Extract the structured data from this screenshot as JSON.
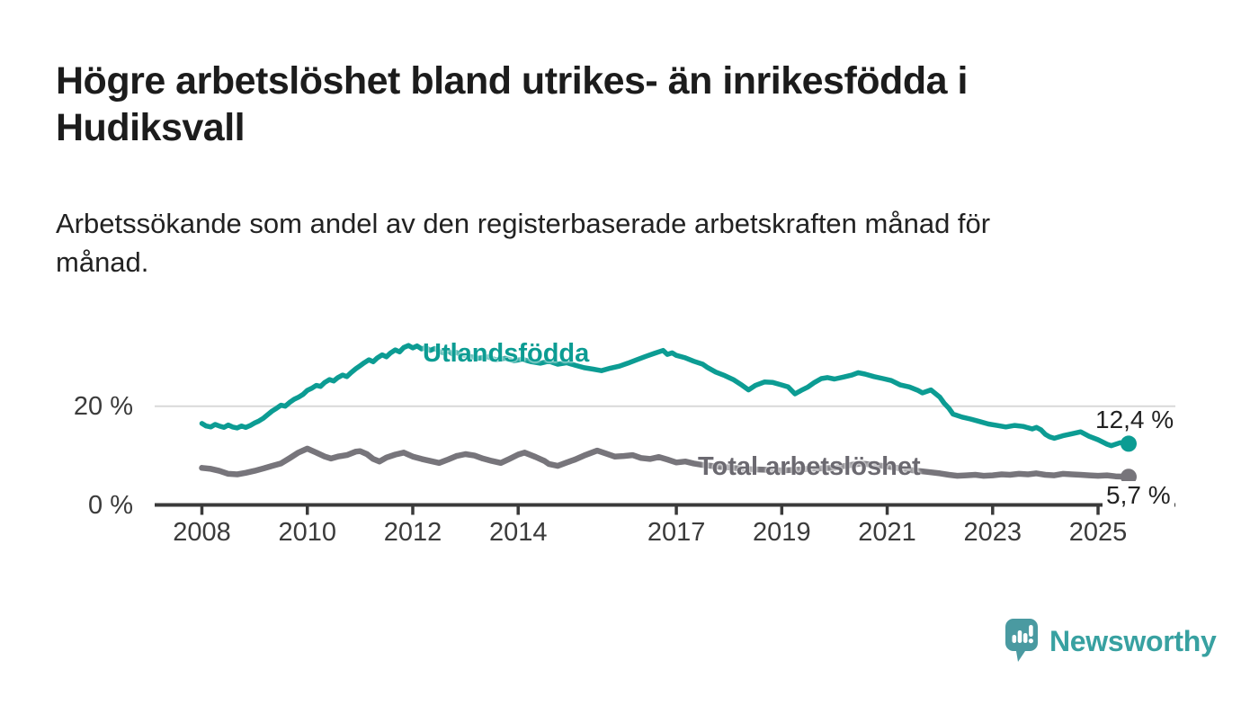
{
  "header": {
    "title_lines": [
      "Högre arbetslöshet bland utrikes- än inrikesfödda i",
      "Hudiksvall"
    ],
    "subtitle_lines": [
      "Arbetssökande som andel av den registerbaserade arbetskraften månad för",
      "månad."
    ]
  },
  "chart_data": {
    "type": "line",
    "title": "Högre arbetslöshet bland utrikes- än inrikesfödda i Hudiksvall",
    "subtitle": "Arbetssökande som andel av den registerbaserade arbetskraften månad för månad.",
    "xlabel": "",
    "ylabel": "",
    "unit": "%",
    "grid": "y-only",
    "gridline_color": "#d9d9d9",
    "axis_color": "#3a3a3a",
    "xlim": [
      2007.1,
      2026.5
    ],
    "ylim": [
      0,
      38
    ],
    "legend_position": "inline-labels-on-lines",
    "x_ticks": [
      {
        "year": 2008,
        "label": "2008"
      },
      {
        "year": 2010,
        "label": "2010"
      },
      {
        "year": 2012,
        "label": "2012"
      },
      {
        "year": 2014,
        "label": "2014"
      },
      {
        "year": 2017,
        "label": "2017"
      },
      {
        "year": 2019,
        "label": "2019"
      },
      {
        "year": 2021,
        "label": "2021"
      },
      {
        "year": 2023,
        "label": "2023"
      },
      {
        "year": 2025,
        "label": "2025"
      }
    ],
    "y_ticks": [
      {
        "value": 20,
        "label": "20 %",
        "gridline": true
      },
      {
        "value": 0,
        "label": "0 %",
        "gridline": false
      }
    ],
    "series": [
      {
        "name": "Utlandsfödda",
        "color": "#0c9c93",
        "end_label": "12,4 %",
        "end_value": 12.4,
        "points": [
          [
            2008.0,
            16.5
          ],
          [
            2008.08,
            16.0
          ],
          [
            2008.17,
            15.8
          ],
          [
            2008.25,
            16.3
          ],
          [
            2008.33,
            16.0
          ],
          [
            2008.42,
            15.7
          ],
          [
            2008.5,
            16.2
          ],
          [
            2008.58,
            15.8
          ],
          [
            2008.67,
            15.6
          ],
          [
            2008.75,
            16.0
          ],
          [
            2008.83,
            15.7
          ],
          [
            2008.92,
            16.1
          ],
          [
            2009.0,
            16.6
          ],
          [
            2009.08,
            17.0
          ],
          [
            2009.17,
            17.6
          ],
          [
            2009.25,
            18.3
          ],
          [
            2009.33,
            19.0
          ],
          [
            2009.42,
            19.6
          ],
          [
            2009.5,
            20.2
          ],
          [
            2009.58,
            20.0
          ],
          [
            2009.67,
            20.8
          ],
          [
            2009.75,
            21.4
          ],
          [
            2009.83,
            21.8
          ],
          [
            2009.92,
            22.4
          ],
          [
            2010.0,
            23.2
          ],
          [
            2010.08,
            23.6
          ],
          [
            2010.17,
            24.2
          ],
          [
            2010.25,
            24.0
          ],
          [
            2010.33,
            24.8
          ],
          [
            2010.42,
            25.4
          ],
          [
            2010.5,
            25.1
          ],
          [
            2010.58,
            25.8
          ],
          [
            2010.67,
            26.3
          ],
          [
            2010.75,
            26.0
          ],
          [
            2010.83,
            26.8
          ],
          [
            2010.92,
            27.6
          ],
          [
            2011.0,
            28.2
          ],
          [
            2011.08,
            28.8
          ],
          [
            2011.17,
            29.4
          ],
          [
            2011.25,
            29.0
          ],
          [
            2011.33,
            29.8
          ],
          [
            2011.42,
            30.4
          ],
          [
            2011.5,
            30.0
          ],
          [
            2011.58,
            30.8
          ],
          [
            2011.67,
            31.4
          ],
          [
            2011.75,
            31.0
          ],
          [
            2011.83,
            31.9
          ],
          [
            2011.92,
            32.3
          ],
          [
            2012.0,
            31.8
          ],
          [
            2012.08,
            32.2
          ],
          [
            2012.17,
            31.6
          ],
          [
            2012.25,
            31.9
          ],
          [
            2012.33,
            31.3
          ],
          [
            2012.42,
            31.7
          ],
          [
            2012.5,
            31.1
          ],
          [
            2012.58,
            30.8
          ],
          [
            2012.67,
            31.2
          ],
          [
            2012.75,
            30.6
          ],
          [
            2012.83,
            30.9
          ],
          [
            2012.92,
            30.4
          ],
          [
            2013.08,
            30.1
          ],
          [
            2013.25,
            29.7
          ],
          [
            2013.42,
            30.0
          ],
          [
            2013.58,
            29.4
          ],
          [
            2013.75,
            29.7
          ],
          [
            2013.92,
            29.2
          ],
          [
            2014.08,
            29.5
          ],
          [
            2014.25,
            29.0
          ],
          [
            2014.42,
            28.7
          ],
          [
            2014.58,
            29.1
          ],
          [
            2014.75,
            28.5
          ],
          [
            2014.92,
            28.8
          ],
          [
            2015.08,
            28.3
          ],
          [
            2015.25,
            27.8
          ],
          [
            2015.42,
            27.5
          ],
          [
            2015.58,
            27.2
          ],
          [
            2015.75,
            27.7
          ],
          [
            2015.92,
            28.1
          ],
          [
            2016.08,
            28.7
          ],
          [
            2016.25,
            29.4
          ],
          [
            2016.42,
            30.1
          ],
          [
            2016.58,
            30.7
          ],
          [
            2016.75,
            31.3
          ],
          [
            2016.83,
            30.5
          ],
          [
            2016.92,
            30.8
          ],
          [
            2017.0,
            30.3
          ],
          [
            2017.17,
            29.8
          ],
          [
            2017.33,
            29.1
          ],
          [
            2017.5,
            28.5
          ],
          [
            2017.58,
            27.9
          ],
          [
            2017.75,
            26.9
          ],
          [
            2017.92,
            26.2
          ],
          [
            2018.08,
            25.4
          ],
          [
            2018.25,
            24.2
          ],
          [
            2018.37,
            23.3
          ],
          [
            2018.5,
            24.2
          ],
          [
            2018.67,
            24.9
          ],
          [
            2018.83,
            24.8
          ],
          [
            2019.0,
            24.3
          ],
          [
            2019.12,
            23.9
          ],
          [
            2019.25,
            22.5
          ],
          [
            2019.37,
            23.2
          ],
          [
            2019.5,
            23.9
          ],
          [
            2019.62,
            24.8
          ],
          [
            2019.75,
            25.6
          ],
          [
            2019.87,
            25.8
          ],
          [
            2020.0,
            25.5
          ],
          [
            2020.17,
            25.9
          ],
          [
            2020.33,
            26.3
          ],
          [
            2020.45,
            26.8
          ],
          [
            2020.58,
            26.5
          ],
          [
            2020.75,
            26.0
          ],
          [
            2020.92,
            25.6
          ],
          [
            2021.08,
            25.2
          ],
          [
            2021.25,
            24.3
          ],
          [
            2021.42,
            23.9
          ],
          [
            2021.58,
            23.2
          ],
          [
            2021.67,
            22.7
          ],
          [
            2021.83,
            23.3
          ],
          [
            2022.0,
            21.8
          ],
          [
            2022.08,
            20.6
          ],
          [
            2022.17,
            19.6
          ],
          [
            2022.25,
            18.4
          ],
          [
            2022.42,
            17.8
          ],
          [
            2022.58,
            17.4
          ],
          [
            2022.75,
            16.9
          ],
          [
            2022.92,
            16.4
          ],
          [
            2023.08,
            16.1
          ],
          [
            2023.25,
            15.8
          ],
          [
            2023.42,
            16.1
          ],
          [
            2023.58,
            15.9
          ],
          [
            2023.75,
            15.4
          ],
          [
            2023.83,
            15.7
          ],
          [
            2023.92,
            15.2
          ],
          [
            2024.0,
            14.3
          ],
          [
            2024.08,
            13.8
          ],
          [
            2024.17,
            13.5
          ],
          [
            2024.33,
            14.0
          ],
          [
            2024.5,
            14.4
          ],
          [
            2024.67,
            14.8
          ],
          [
            2024.83,
            13.9
          ],
          [
            2025.0,
            13.2
          ],
          [
            2025.17,
            12.3
          ],
          [
            2025.25,
            12.0
          ],
          [
            2025.42,
            12.6
          ],
          [
            2025.58,
            12.4
          ]
        ]
      },
      {
        "name": "Total arbetslöshet",
        "color": "#77757b",
        "end_label": "5,7 %",
        "end_value": 5.7,
        "points": [
          [
            2008.0,
            7.5
          ],
          [
            2008.17,
            7.3
          ],
          [
            2008.33,
            6.9
          ],
          [
            2008.5,
            6.3
          ],
          [
            2008.67,
            6.2
          ],
          [
            2008.83,
            6.5
          ],
          [
            2009.0,
            6.9
          ],
          [
            2009.17,
            7.4
          ],
          [
            2009.33,
            7.9
          ],
          [
            2009.5,
            8.4
          ],
          [
            2009.67,
            9.5
          ],
          [
            2009.83,
            10.6
          ],
          [
            2010.0,
            11.4
          ],
          [
            2010.17,
            10.6
          ],
          [
            2010.33,
            9.8
          ],
          [
            2010.45,
            9.4
          ],
          [
            2010.58,
            9.8
          ],
          [
            2010.75,
            10.1
          ],
          [
            2010.92,
            10.8
          ],
          [
            2011.0,
            10.9
          ],
          [
            2011.13,
            10.3
          ],
          [
            2011.25,
            9.3
          ],
          [
            2011.37,
            8.8
          ],
          [
            2011.5,
            9.6
          ],
          [
            2011.67,
            10.2
          ],
          [
            2011.83,
            10.6
          ],
          [
            2012.0,
            9.8
          ],
          [
            2012.17,
            9.3
          ],
          [
            2012.33,
            8.9
          ],
          [
            2012.5,
            8.5
          ],
          [
            2012.67,
            9.2
          ],
          [
            2012.83,
            9.9
          ],
          [
            2013.0,
            10.3
          ],
          [
            2013.17,
            10.0
          ],
          [
            2013.33,
            9.4
          ],
          [
            2013.5,
            8.9
          ],
          [
            2013.67,
            8.5
          ],
          [
            2013.83,
            9.3
          ],
          [
            2014.0,
            10.2
          ],
          [
            2014.12,
            10.6
          ],
          [
            2014.33,
            9.7
          ],
          [
            2014.5,
            8.9
          ],
          [
            2014.58,
            8.3
          ],
          [
            2014.75,
            7.9
          ],
          [
            2014.92,
            8.6
          ],
          [
            2015.08,
            9.2
          ],
          [
            2015.25,
            10.0
          ],
          [
            2015.5,
            11.0
          ],
          [
            2015.67,
            10.4
          ],
          [
            2015.83,
            9.8
          ],
          [
            2016.0,
            9.9
          ],
          [
            2016.17,
            10.1
          ],
          [
            2016.33,
            9.5
          ],
          [
            2016.5,
            9.3
          ],
          [
            2016.67,
            9.7
          ],
          [
            2016.83,
            9.2
          ],
          [
            2017.0,
            8.6
          ],
          [
            2017.17,
            8.8
          ],
          [
            2017.33,
            8.4
          ],
          [
            2017.5,
            8.1
          ],
          [
            2017.67,
            7.9
          ],
          [
            2017.83,
            7.7
          ],
          [
            2018.0,
            7.6
          ],
          [
            2018.25,
            7.3
          ],
          [
            2018.5,
            7.2
          ],
          [
            2018.75,
            7.1
          ],
          [
            2019.0,
            7.0
          ],
          [
            2019.25,
            7.1
          ],
          [
            2019.5,
            7.3
          ],
          [
            2019.75,
            7.4
          ],
          [
            2020.0,
            7.5
          ],
          [
            2020.25,
            8.0
          ],
          [
            2020.5,
            8.4
          ],
          [
            2020.75,
            8.1
          ],
          [
            2021.0,
            7.8
          ],
          [
            2021.25,
            7.4
          ],
          [
            2021.5,
            7.0
          ],
          [
            2021.75,
            6.7
          ],
          [
            2022.0,
            6.4
          ],
          [
            2022.17,
            6.1
          ],
          [
            2022.33,
            5.9
          ],
          [
            2022.5,
            6.0
          ],
          [
            2022.67,
            6.1
          ],
          [
            2022.83,
            5.9
          ],
          [
            2023.0,
            6.0
          ],
          [
            2023.17,
            6.2
          ],
          [
            2023.33,
            6.1
          ],
          [
            2023.5,
            6.3
          ],
          [
            2023.67,
            6.2
          ],
          [
            2023.83,
            6.4
          ],
          [
            2024.0,
            6.1
          ],
          [
            2024.17,
            6.0
          ],
          [
            2024.33,
            6.3
          ],
          [
            2024.5,
            6.2
          ],
          [
            2024.67,
            6.1
          ],
          [
            2024.83,
            6.0
          ],
          [
            2025.0,
            5.9
          ],
          [
            2025.17,
            6.0
          ],
          [
            2025.33,
            5.8
          ],
          [
            2025.58,
            5.7
          ]
        ]
      }
    ]
  },
  "footer": {
    "brand": "Newsworthy",
    "logo_icon": "speech-bubble-bar-chart-icon",
    "brand_color": "#38a1a1",
    "logo_bubble_color": "#4a9aa1"
  }
}
